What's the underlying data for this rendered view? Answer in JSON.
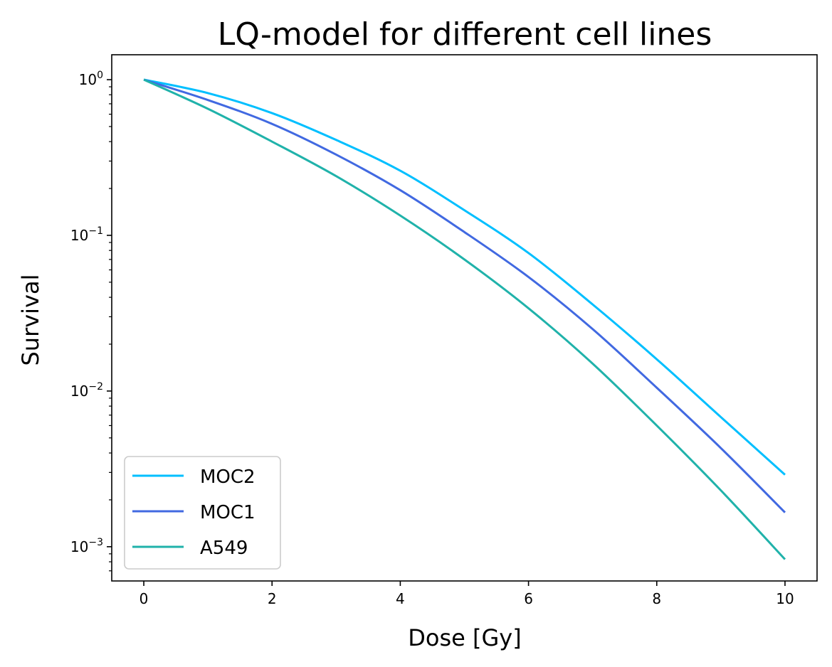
{
  "chart_data": {
    "type": "line",
    "title": "LQ-model for different cell lines",
    "xlabel": "Dose [Gy]",
    "ylabel": "Survival",
    "xlim": [
      -0.5,
      10.5
    ],
    "ylim_log10": [
      -3.22,
      0.16
    ],
    "yscale": "log",
    "grid": false,
    "legend_position": "lower-left",
    "x_ticks": [
      {
        "value": 0,
        "label": "0"
      },
      {
        "value": 2,
        "label": "2"
      },
      {
        "value": 4,
        "label": "4"
      },
      {
        "value": 6,
        "label": "6"
      },
      {
        "value": 8,
        "label": "8"
      },
      {
        "value": 10,
        "label": "10"
      }
    ],
    "y_ticks": [
      {
        "exp": 0,
        "base": "10",
        "sup": "0"
      },
      {
        "exp": -1,
        "base": "10",
        "sup": "−1"
      },
      {
        "exp": -2,
        "base": "10",
        "sup": "−2"
      },
      {
        "exp": -3,
        "base": "10",
        "sup": "−3"
      }
    ],
    "x": [
      0,
      1,
      2,
      3,
      4,
      5,
      6,
      7,
      8,
      9,
      10
    ],
    "series": [
      {
        "name": "MOC2",
        "color": "#00bfff",
        "values": [
          1.0,
          0.82,
          0.61,
          0.41,
          0.26,
          0.145,
          0.077,
          0.036,
          0.016,
          0.0068,
          0.0029
        ]
      },
      {
        "name": "MOC1",
        "color": "#4169e1",
        "values": [
          1.0,
          0.74,
          0.52,
          0.33,
          0.195,
          0.105,
          0.054,
          0.025,
          0.0105,
          0.0043,
          0.00166
        ]
      },
      {
        "name": "A549",
        "color": "#20b2aa",
        "values": [
          1.0,
          0.65,
          0.4,
          0.24,
          0.134,
          0.07,
          0.034,
          0.015,
          0.006,
          0.0023,
          0.00083
        ]
      }
    ]
  }
}
